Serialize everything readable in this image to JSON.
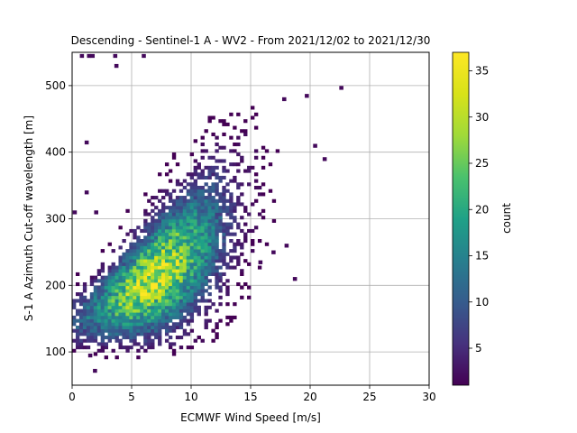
{
  "chart_data": {
    "type": "heatmap",
    "title": "Descending - Sentinel-1 A - WV2 - From 2021/12/02 to 2021/12/30",
    "xlabel": "ECMWF Wind Speed [m/s]",
    "ylabel": "S-1 A Azimuth Cut-off wavelength [m]",
    "xlim": [
      0,
      30
    ],
    "ylim": [
      50,
      550
    ],
    "xticks": [
      "0",
      "5",
      "10",
      "15",
      "20",
      "25",
      "30"
    ],
    "yticks": [
      "100",
      "200",
      "300",
      "400",
      "500"
    ],
    "grid": true,
    "bin_size": {
      "x": 0.3,
      "y": 5
    },
    "colorbar": {
      "label": "count",
      "min": 1,
      "max": 37,
      "ticks": [
        "5",
        "10",
        "15",
        "20",
        "25",
        "30",
        "35"
      ],
      "colormap": "viridis"
    },
    "density_model": {
      "description": "2D histogram count peak",
      "peak": {
        "x": 7.0,
        "y": 190,
        "count": 37
      }
    },
    "outliers": [
      {
        "x": 0.8,
        "y": 545
      },
      {
        "x": 1.4,
        "y": 545
      },
      {
        "x": 1.7,
        "y": 545
      },
      {
        "x": 3.6,
        "y": 545
      },
      {
        "x": 6.0,
        "y": 545
      },
      {
        "x": 3.7,
        "y": 530
      },
      {
        "x": 1.2,
        "y": 415
      },
      {
        "x": 22.6,
        "y": 497
      },
      {
        "x": 17.8,
        "y": 480
      },
      {
        "x": 19.7,
        "y": 485
      },
      {
        "x": 1.2,
        "y": 340
      },
      {
        "x": 0.2,
        "y": 310
      },
      {
        "x": 1.9,
        "y": 72
      },
      {
        "x": 1.5,
        "y": 95
      },
      {
        "x": 1.1,
        "y": 52
      },
      {
        "x": 1.6,
        "y": 52
      },
      {
        "x": 21.2,
        "y": 390
      },
      {
        "x": 20.4,
        "y": 410
      },
      {
        "x": 18.0,
        "y": 260
      },
      {
        "x": 18.7,
        "y": 210
      },
      {
        "x": 16.9,
        "y": 250
      },
      {
        "x": 15.8,
        "y": 235
      },
      {
        "x": 2.0,
        "y": 310
      }
    ]
  }
}
